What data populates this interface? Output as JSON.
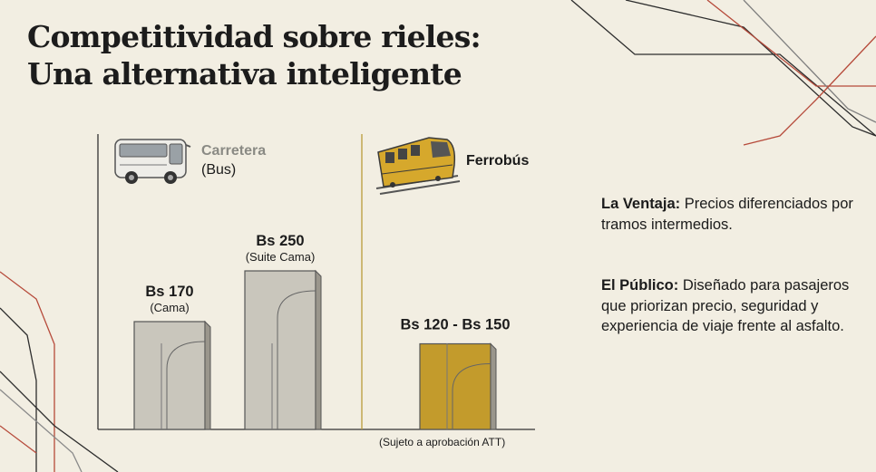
{
  "title_line1": "Competitividad sobre rieles:",
  "title_line2": "Una alternativa inteligente",
  "road_panel": {
    "label": "Carretera",
    "sublabel": "(Bus)",
    "icon": "bus-icon"
  },
  "rail_panel": {
    "label": "Ferrobús",
    "icon": "train-icon"
  },
  "chart_data": {
    "type": "bar",
    "categories": [
      "Cama",
      "Suite Cama",
      "Ferrobús"
    ],
    "values": [
      170,
      250,
      135
    ],
    "value_labels": [
      "Bs 170",
      "Bs 250",
      "Bs 120 - Bs 150"
    ],
    "sub_labels": [
      "(Cama)",
      "(Suite Cama)",
      ""
    ],
    "range": [
      120,
      150
    ],
    "colors": [
      "#c9c6bc",
      "#c9c6bc",
      "#c39b2c"
    ],
    "footnote": "(Sujeto a aprobación ATT)",
    "grid": false,
    "ylim": [
      0,
      300
    ]
  },
  "info": {
    "advantage_label": "La Ventaja:",
    "advantage_text": " Precios diferenciados por tramos intermedios.",
    "public_label": "El Público:",
    "public_text": " Diseñado para pasajeros que priorizan precio, seguridad y experiencia de viaje frente al asfalto."
  }
}
